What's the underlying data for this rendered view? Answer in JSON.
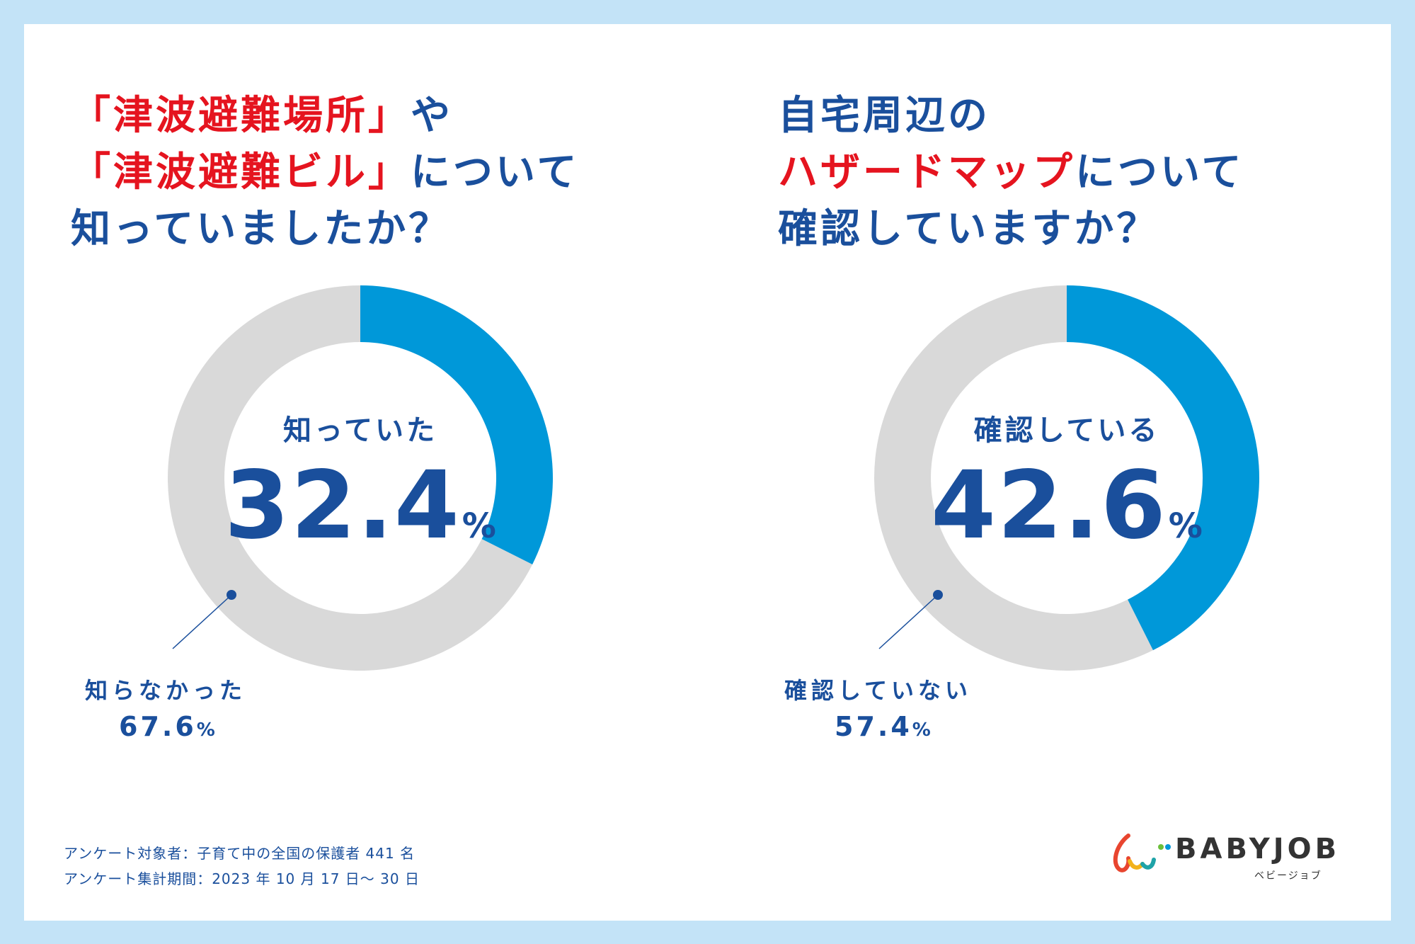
{
  "colors": {
    "background": "#c3e3f7",
    "card": "#ffffff",
    "accent_blue": "#0098d9",
    "track_gray": "#d9d9d9",
    "text_navy": "#1a4f9c",
    "highlight_red": "#e5141f"
  },
  "left_title": {
    "line1_red": "「津波避難場所」",
    "line1_rest": "や",
    "line2_red": "「津波避難ビル」",
    "line2_rest": "について",
    "line3": "知っていましたか？"
  },
  "right_title": {
    "line1": "自宅周辺の",
    "line2_red": "ハザードマップ",
    "line2_rest": "について",
    "line3": "確認していますか？"
  },
  "chart_data": [
    {
      "type": "pie",
      "style": "donut",
      "slices": [
        {
          "label": "知っていた",
          "value": 32.4,
          "display": "32.4",
          "color": "#0098d9"
        },
        {
          "label": "知らなかった",
          "value": 67.6,
          "display": "67.6",
          "color": "#d9d9d9"
        }
      ],
      "unit": "%"
    },
    {
      "type": "pie",
      "style": "donut",
      "slices": [
        {
          "label": "確認している",
          "value": 42.6,
          "display": "42.6",
          "color": "#0098d9"
        },
        {
          "label": "確認していない",
          "value": 57.4,
          "display": "57.4",
          "color": "#d9d9d9"
        }
      ],
      "unit": "%"
    }
  ],
  "footnotes": [
    "アンケート対象者：子育て中の全国の保護者 441 名",
    "アンケート集計期間：2023 年 10 月 17 日～ 30 日"
  ],
  "logo": {
    "name": "BABYJOB",
    "kana": "ベビージョブ",
    "icon": "babyjob-logo-mark"
  }
}
